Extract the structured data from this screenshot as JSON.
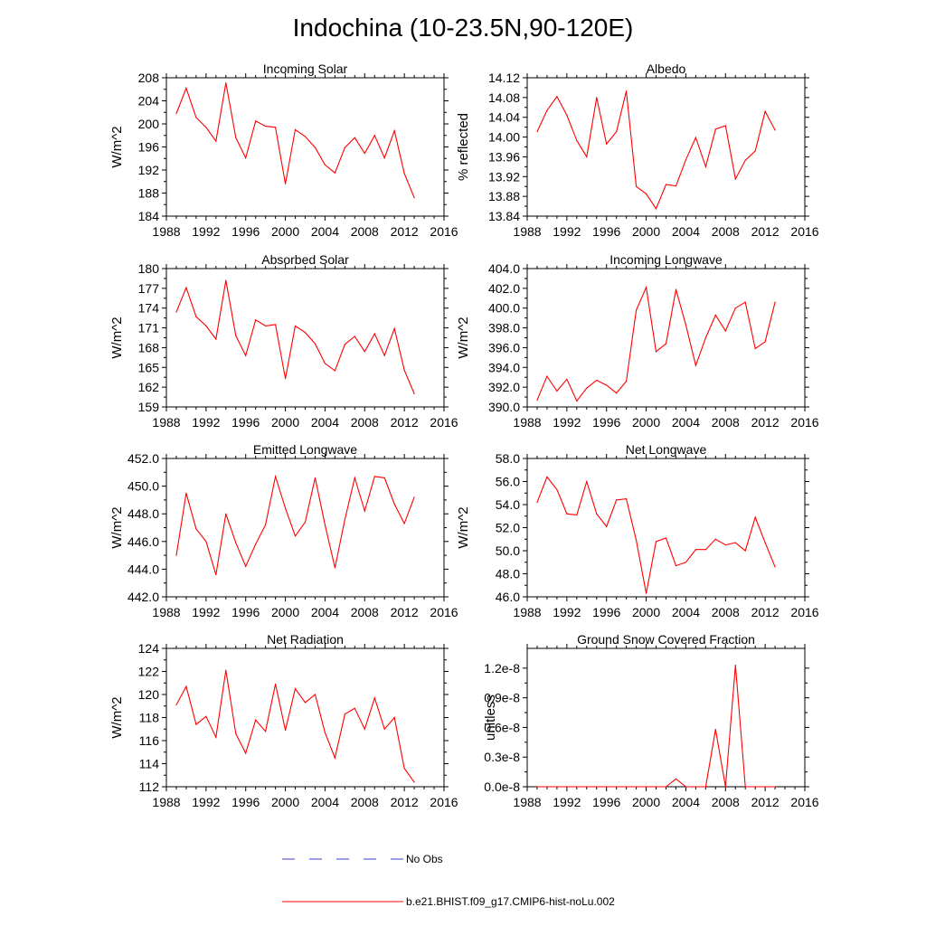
{
  "figure_title": "Indochina (10-23.5N,90-120E)",
  "legend": [
    {
      "label": "No Obs",
      "color": "#3b3bd1",
      "dash": true
    },
    {
      "label": "b.e21.BHIST.f09_g17.CMIP6-hist-noLu.002",
      "color": "#ff0000",
      "dash": false
    }
  ],
  "chart_data": [
    {
      "type": "line",
      "title": "Incoming Solar",
      "ylabel": "W/m^2",
      "xlim": [
        1988,
        2016
      ],
      "ylim": [
        184,
        208
      ],
      "xticks": [
        "1988",
        "1992",
        "1996",
        "2000",
        "2004",
        "2008",
        "2012",
        "2016"
      ],
      "yticks": [
        "184",
        "188",
        "192",
        "196",
        "200",
        "204",
        "208"
      ],
      "x": [
        1989,
        1990,
        1991,
        1992,
        1993,
        1994,
        1995,
        1996,
        1997,
        1998,
        1999,
        2000,
        2001,
        2002,
        2003,
        2004,
        2005,
        2006,
        2007,
        2008,
        2009,
        2010,
        2011,
        2012,
        2013
      ],
      "series": [
        {
          "name": "b.e21.BHIST.f09_g17.CMIP6-hist-noLu.002",
          "color": "#ff0000",
          "values": [
            201.8,
            206.2,
            201.1,
            199.4,
            197.0,
            207.1,
            197.6,
            194.1,
            200.5,
            199.6,
            199.4,
            189.6,
            199.0,
            197.8,
            195.9,
            192.9,
            191.5,
            195.9,
            197.6,
            194.9,
            198.0,
            194.1,
            198.8,
            191.4,
            187.2
          ]
        }
      ]
    },
    {
      "type": "line",
      "title": "Albedo",
      "ylabel": "% reflected",
      "xlim": [
        1988,
        2016
      ],
      "ylim": [
        13.84,
        14.12
      ],
      "xticks": [
        "1988",
        "1992",
        "1996",
        "2000",
        "2004",
        "2008",
        "2012",
        "2016"
      ],
      "yticks": [
        "13.84",
        "13.88",
        "13.92",
        "13.96",
        "14.00",
        "14.04",
        "14.08",
        "14.12"
      ],
      "x": [
        1989,
        1990,
        1991,
        1992,
        1993,
        1994,
        1995,
        1996,
        1997,
        1998,
        1999,
        2000,
        2001,
        2002,
        2003,
        2004,
        2005,
        2006,
        2007,
        2008,
        2009,
        2010,
        2011,
        2012,
        2013
      ],
      "series": [
        {
          "name": "b.e21.BHIST.f09_g17.CMIP6-hist-noLu.002",
          "color": "#ff0000",
          "values": [
            14.011,
            14.054,
            14.082,
            14.044,
            13.993,
            13.96,
            14.08,
            13.986,
            14.011,
            14.093,
            13.9,
            13.885,
            13.855,
            13.904,
            13.901,
            13.954,
            13.999,
            13.94,
            14.016,
            14.023,
            13.915,
            13.953,
            13.972,
            14.052,
            14.014
          ]
        }
      ]
    },
    {
      "type": "line",
      "title": "Absorbed Solar",
      "ylabel": "W/m^2",
      "xlim": [
        1988,
        2016
      ],
      "ylim": [
        159,
        180
      ],
      "xticks": [
        "1988",
        "1992",
        "1996",
        "2000",
        "2004",
        "2008",
        "2012",
        "2016"
      ],
      "yticks": [
        "159",
        "162",
        "165",
        "168",
        "171",
        "174",
        "177",
        "180"
      ],
      "x": [
        1989,
        1990,
        1991,
        1992,
        1993,
        1994,
        1995,
        1996,
        1997,
        1998,
        1999,
        2000,
        2001,
        2002,
        2003,
        2004,
        2005,
        2006,
        2007,
        2008,
        2009,
        2010,
        2011,
        2012,
        2013
      ],
      "series": [
        {
          "name": "b.e21.BHIST.f09_g17.CMIP6-hist-noLu.002",
          "color": "#ff0000",
          "values": [
            173.4,
            177.1,
            172.7,
            171.3,
            169.3,
            178.2,
            169.8,
            166.8,
            172.2,
            171.3,
            171.5,
            163.3,
            171.3,
            170.3,
            168.6,
            165.6,
            164.5,
            168.5,
            169.7,
            167.4,
            170.1,
            166.8,
            170.9,
            164.6,
            161.0
          ]
        }
      ]
    },
    {
      "type": "line",
      "title": "Incoming Longwave",
      "ylabel": "W/m^2",
      "xlim": [
        1988,
        2016
      ],
      "ylim": [
        390.0,
        404.0
      ],
      "xticks": [
        "1988",
        "1992",
        "1996",
        "2000",
        "2004",
        "2008",
        "2012",
        "2016"
      ],
      "yticks": [
        "390.0",
        "392.0",
        "394.0",
        "396.0",
        "398.0",
        "400.0",
        "402.0",
        "404.0"
      ],
      "x": [
        1989,
        1990,
        1991,
        1992,
        1993,
        1994,
        1995,
        1996,
        1997,
        1998,
        1999,
        2000,
        2001,
        2002,
        2003,
        2004,
        2005,
        2006,
        2007,
        2008,
        2009,
        2010,
        2011,
        2012,
        2013
      ],
      "series": [
        {
          "name": "b.e21.BHIST.f09_g17.CMIP6-hist-noLu.002",
          "color": "#ff0000",
          "values": [
            390.7,
            393.1,
            391.6,
            392.8,
            390.6,
            391.9,
            392.7,
            392.2,
            391.4,
            392.6,
            399.8,
            402.1,
            395.6,
            396.4,
            401.9,
            398.3,
            394.2,
            397.0,
            399.3,
            397.7,
            400.0,
            400.6,
            395.9,
            396.6,
            400.6
          ]
        }
      ]
    },
    {
      "type": "line",
      "title": "Emitted Longwave",
      "ylabel": "W/m^2",
      "xlim": [
        1988,
        2016
      ],
      "ylim": [
        442.0,
        452.0
      ],
      "xticks": [
        "1988",
        "1992",
        "1996",
        "2000",
        "2004",
        "2008",
        "2012",
        "2016"
      ],
      "yticks": [
        "442.0",
        "444.0",
        "446.0",
        "448.0",
        "450.0",
        "452.0"
      ],
      "x": [
        1989,
        1990,
        1991,
        1992,
        1993,
        1994,
        1995,
        1996,
        1997,
        1998,
        1999,
        2000,
        2001,
        2002,
        2003,
        2004,
        2005,
        2006,
        2007,
        2008,
        2009,
        2010,
        2011,
        2012,
        2013
      ],
      "series": [
        {
          "name": "b.e21.BHIST.f09_g17.CMIP6-hist-noLu.002",
          "color": "#ff0000",
          "values": [
            445.0,
            449.5,
            446.9,
            446.0,
            443.6,
            448.0,
            445.9,
            444.2,
            445.8,
            447.2,
            450.7,
            448.4,
            446.4,
            447.4,
            450.6,
            447.2,
            444.1,
            447.6,
            450.6,
            448.2,
            450.7,
            450.6,
            448.7,
            447.3,
            449.2
          ]
        }
      ]
    },
    {
      "type": "line",
      "title": "Net Longwave",
      "ylabel": "W/m^2",
      "xlim": [
        1988,
        2016
      ],
      "ylim": [
        46.0,
        58.0
      ],
      "xticks": [
        "1988",
        "1992",
        "1996",
        "2000",
        "2004",
        "2008",
        "2012",
        "2016"
      ],
      "yticks": [
        "46.0",
        "48.0",
        "50.0",
        "52.0",
        "54.0",
        "56.0",
        "58.0"
      ],
      "x": [
        1989,
        1990,
        1991,
        1992,
        1993,
        1994,
        1995,
        1996,
        1997,
        1998,
        1999,
        2000,
        2001,
        2002,
        2003,
        2004,
        2005,
        2006,
        2007,
        2008,
        2009,
        2010,
        2011,
        2012,
        2013
      ],
      "series": [
        {
          "name": "b.e21.BHIST.f09_g17.CMIP6-hist-noLu.002",
          "color": "#ff0000",
          "values": [
            54.2,
            56.4,
            55.3,
            53.2,
            53.1,
            56.0,
            53.2,
            52.1,
            54.4,
            54.5,
            50.9,
            46.3,
            50.8,
            51.1,
            48.7,
            49.0,
            50.1,
            50.1,
            51.0,
            50.5,
            50.7,
            50.0,
            52.9,
            50.7,
            48.6
          ]
        }
      ]
    },
    {
      "type": "line",
      "title": "Net Radiation",
      "ylabel": "W/m^2",
      "xlim": [
        1988,
        2016
      ],
      "ylim": [
        112,
        124
      ],
      "xticks": [
        "1988",
        "1992",
        "1996",
        "2000",
        "2004",
        "2008",
        "2012",
        "2016"
      ],
      "yticks": [
        "112",
        "114",
        "116",
        "118",
        "120",
        "122",
        "124"
      ],
      "x": [
        1989,
        1990,
        1991,
        1992,
        1993,
        1994,
        1995,
        1996,
        1997,
        1998,
        1999,
        2000,
        2001,
        2002,
        2003,
        2004,
        2005,
        2006,
        2007,
        2008,
        2009,
        2010,
        2011,
        2012,
        2013
      ],
      "series": [
        {
          "name": "b.e21.BHIST.f09_g17.CMIP6-hist-noLu.002",
          "color": "#ff0000",
          "values": [
            119.1,
            120.7,
            117.4,
            118.1,
            116.3,
            122.1,
            116.6,
            114.9,
            117.8,
            116.8,
            120.9,
            116.9,
            120.5,
            119.3,
            120.0,
            116.7,
            114.5,
            118.3,
            118.8,
            117.0,
            119.7,
            117.0,
            118.0,
            113.6,
            112.4
          ]
        }
      ]
    },
    {
      "type": "line",
      "title": "Ground Snow Covered Fraction",
      "ylabel": "unitless",
      "xlim": [
        1988,
        2016
      ],
      "ylim": [
        0,
        1.4e-08
      ],
      "xticks": [
        "1988",
        "1992",
        "1996",
        "2000",
        "2004",
        "2008",
        "2012",
        "2016"
      ],
      "ytick_values": [
        0,
        3e-09,
        6e-09,
        9e-09,
        1.2e-08
      ],
      "yticks": [
        "0.0e-8",
        "0.3e-8",
        "0.6e-8",
        "0.9e-8",
        "1.2e-8"
      ],
      "x": [
        1989,
        1990,
        1991,
        1992,
        1993,
        1994,
        1995,
        1996,
        1997,
        1998,
        1999,
        2000,
        2001,
        2002,
        2003,
        2004,
        2005,
        2006,
        2007,
        2008,
        2009,
        2010,
        2011,
        2012,
        2013
      ],
      "series": [
        {
          "name": "b.e21.BHIST.f09_g17.CMIP6-hist-noLu.002",
          "color": "#ff0000",
          "values": [
            0,
            0,
            0,
            0,
            0,
            0,
            0,
            0,
            0,
            0,
            0,
            0,
            0,
            0,
            8e-10,
            0,
            0,
            0,
            5.8e-09,
            0,
            1.23e-08,
            0,
            0,
            0,
            0
          ]
        }
      ]
    }
  ]
}
